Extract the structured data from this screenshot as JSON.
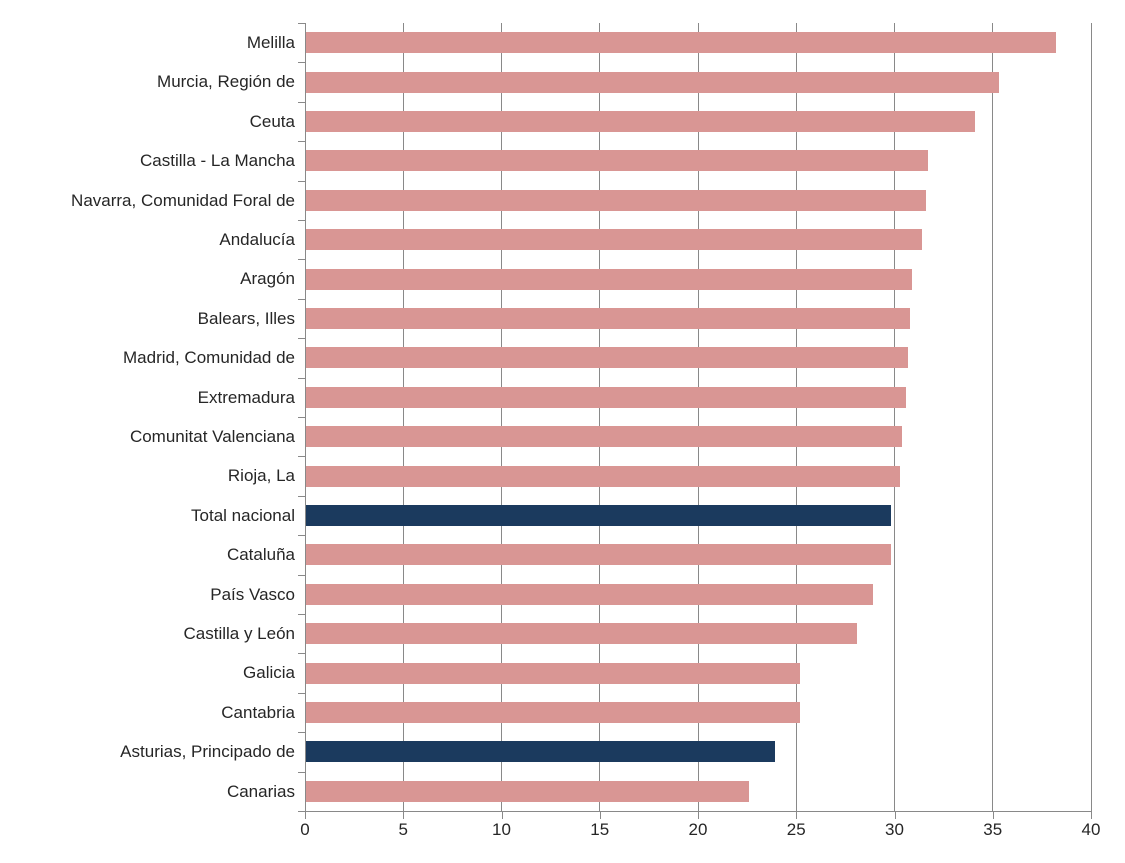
{
  "chart_data": {
    "type": "bar",
    "orientation": "horizontal",
    "title": "",
    "xlabel": "",
    "ylabel": "",
    "xlim": [
      0,
      40
    ],
    "x_ticks": [
      "0",
      "5",
      "10",
      "15",
      "20",
      "25",
      "30",
      "35",
      "40"
    ],
    "grid": "vertical-major-gridlines",
    "legend": "none",
    "bars": [
      {
        "label": "Melilla",
        "value": 38.2,
        "highlight": false
      },
      {
        "label": "Murcia, Región de",
        "value": 35.3,
        "highlight": false
      },
      {
        "label": "Ceuta",
        "value": 34.1,
        "highlight": false
      },
      {
        "label": "Castilla - La Mancha",
        "value": 31.7,
        "highlight": false
      },
      {
        "label": "Navarra, Comunidad Foral de",
        "value": 31.6,
        "highlight": false
      },
      {
        "label": "Andalucía",
        "value": 31.4,
        "highlight": false
      },
      {
        "label": "Aragón",
        "value": 30.9,
        "highlight": false
      },
      {
        "label": "Balears, Illes",
        "value": 30.8,
        "highlight": false
      },
      {
        "label": "Madrid, Comunidad de",
        "value": 30.7,
        "highlight": false
      },
      {
        "label": "Extremadura",
        "value": 30.6,
        "highlight": false
      },
      {
        "label": "Comunitat Valenciana",
        "value": 30.4,
        "highlight": false
      },
      {
        "label": "Rioja, La",
        "value": 30.3,
        "highlight": false
      },
      {
        "label": "Total nacional",
        "value": 29.8,
        "highlight": true
      },
      {
        "label": "Cataluña",
        "value": 29.8,
        "highlight": false
      },
      {
        "label": "País Vasco",
        "value": 28.9,
        "highlight": false
      },
      {
        "label": "Castilla y León",
        "value": 28.1,
        "highlight": false
      },
      {
        "label": "Galicia",
        "value": 25.2,
        "highlight": false
      },
      {
        "label": "Cantabria",
        "value": 25.2,
        "highlight": false
      },
      {
        "label": "Asturias, Principado de",
        "value": 23.9,
        "highlight": true
      },
      {
        "label": "Canarias",
        "value": 22.6,
        "highlight": false
      }
    ],
    "colors": {
      "bar": "#d99694",
      "highlight": "#1b3a5e",
      "gridline": "#898989",
      "axis": "#898989",
      "category_label": "#262626",
      "tick_label": "#262626",
      "background": "#ffffff"
    }
  }
}
